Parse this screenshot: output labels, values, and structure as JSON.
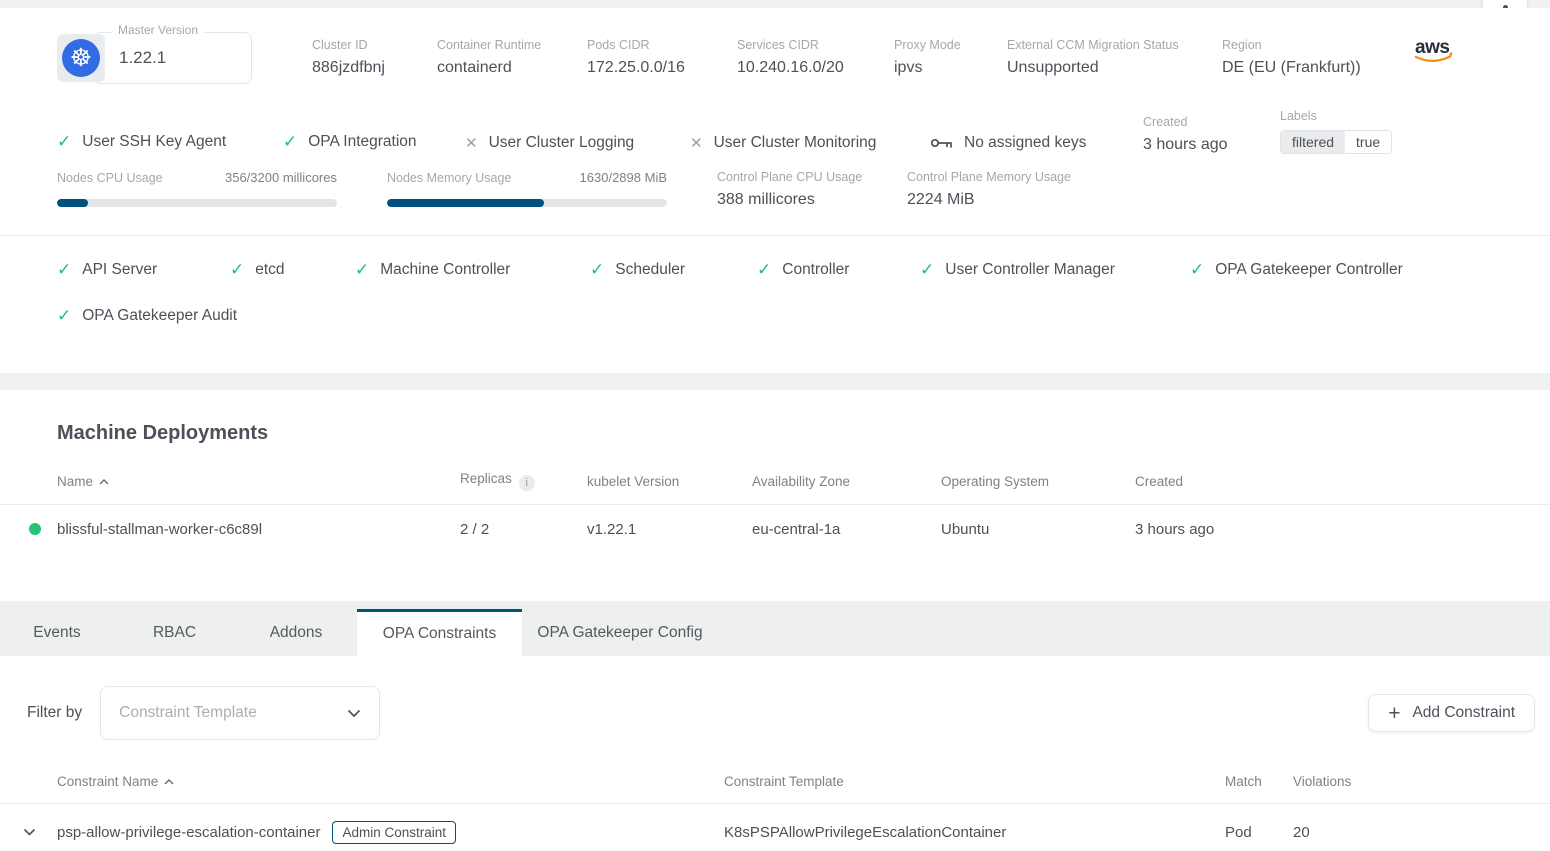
{
  "colors": {
    "accent_blue": "#00517d",
    "success_green": "#1fbf75",
    "provider_navy": "#252f3e",
    "provider_orange": "#f29111"
  },
  "cluster": {
    "master_version": {
      "label": "Master Version",
      "value": "1.22.1"
    },
    "info": [
      {
        "label": "Cluster ID",
        "value": "886jzdfbnj"
      },
      {
        "label": "Container Runtime",
        "value": "containerd"
      },
      {
        "label": "Pods CIDR",
        "value": "172.25.0.0/16"
      },
      {
        "label": "Services CIDR",
        "value": "10.240.16.0/20"
      },
      {
        "label": "Proxy Mode",
        "value": "ipvs"
      },
      {
        "label": "External CCM Migration Status",
        "value": "Unsupported"
      },
      {
        "label": "Region",
        "value": "DE (EU (Frankfurt))"
      }
    ],
    "provider_logo": "aws",
    "features": [
      {
        "label": "User SSH Key Agent",
        "enabled": true
      },
      {
        "label": "OPA Integration",
        "enabled": true
      },
      {
        "label": "User Cluster Logging",
        "enabled": false
      },
      {
        "label": "User Cluster Monitoring",
        "enabled": false
      }
    ],
    "ssh_keys_text": "No assigned keys",
    "created": {
      "label": "Created",
      "value": "3 hours ago"
    },
    "labels": {
      "label": "Labels",
      "chip": {
        "key": "filtered",
        "value": "true"
      }
    },
    "usage_bars": [
      {
        "label": "Nodes CPU Usage",
        "value": "356/3200 millicores",
        "percent": 11.1
      },
      {
        "label": "Nodes Memory Usage",
        "value": "1630/2898 MiB",
        "percent": 56.2
      }
    ],
    "control_plane": [
      {
        "label": "Control Plane CPU Usage",
        "value": "388 millicores"
      },
      {
        "label": "Control Plane Memory Usage",
        "value": "2224 MiB"
      }
    ],
    "health_checks": [
      "API Server",
      "etcd",
      "Machine Controller",
      "Scheduler",
      "Controller",
      "User Controller Manager",
      "OPA Gatekeeper Controller",
      "OPA Gatekeeper Audit"
    ]
  },
  "machine_deployments": {
    "title": "Machine Deployments",
    "headers": {
      "name": "Name",
      "replicas": "Replicas",
      "kubelet": "kubelet Version",
      "zone": "Availability Zone",
      "os": "Operating System",
      "created": "Created"
    },
    "rows": [
      {
        "name": "blissful-stallman-worker-c6c89l",
        "replicas": "2 / 2",
        "kubelet": "v1.22.1",
        "zone": "eu-central-1a",
        "os": "Ubuntu",
        "created": "3 hours ago",
        "status": "healthy"
      }
    ]
  },
  "tabs": {
    "items": [
      "Events",
      "RBAC",
      "Addons",
      "OPA Constraints",
      "OPA Gatekeeper Config"
    ],
    "active": "OPA Constraints"
  },
  "constraints": {
    "filter_label": "Filter by",
    "filter_placeholder": "Constraint Template",
    "add_button_label": "Add Constraint",
    "headers": {
      "name": "Constraint Name",
      "template": "Constraint Template",
      "match": "Match",
      "violations": "Violations"
    },
    "rows": [
      {
        "name": "psp-allow-privilege-escalation-container",
        "badge": "Admin Constraint",
        "template": "K8sPSPAllowPrivilegeEscalationContainer",
        "match": "Pod",
        "violations": "20"
      }
    ]
  }
}
